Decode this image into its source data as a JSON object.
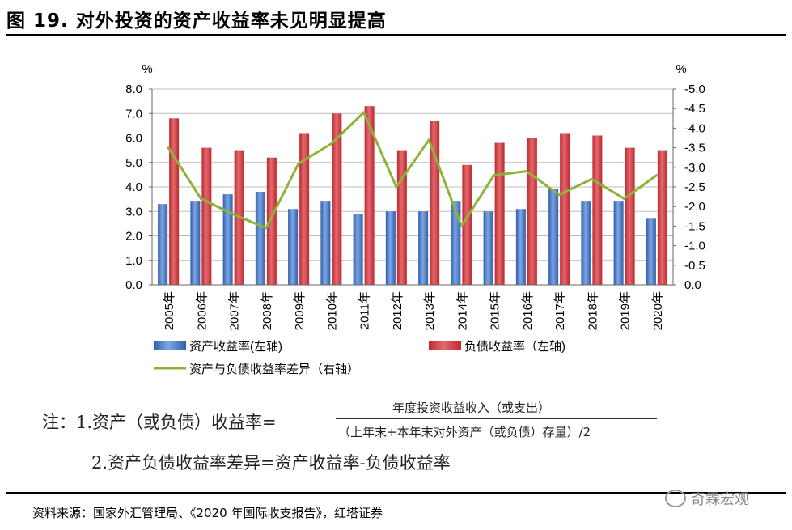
{
  "figure": {
    "title": "图 19. 对外投资的资产收益率未见明显提高",
    "note_line1_prefix": "注：1.资产（或负债）收益率=",
    "note_numerator": "年度投资收益收入（或支出）",
    "note_denominator": "（上年末+本年末对外资产（或负债）存量）/2",
    "note_line2": "2.资产负债收益率差异=资产收益率-负债收益率",
    "source": "资料来源：国家外汇管理局、《2020 年国际收支报告》，红塔证券",
    "watermark": "奇霖宏观"
  },
  "chart_data": {
    "type": "bar",
    "categories": [
      "2005年",
      "2006年",
      "2007年",
      "2008年",
      "2009年",
      "2010年",
      "2011年",
      "2012年",
      "2013年",
      "2014年",
      "2015年",
      "2016年",
      "2017年",
      "2018年",
      "2019年",
      "2020年"
    ],
    "series": [
      {
        "name": "资产收益率(左轴)",
        "kind": "bar",
        "axis": "left",
        "color": "#2E5FB0",
        "values": [
          3.3,
          3.4,
          3.7,
          3.8,
          3.1,
          3.4,
          2.9,
          3.0,
          3.0,
          3.4,
          3.0,
          3.1,
          3.9,
          3.4,
          3.4,
          2.7
        ]
      },
      {
        "name": "负债收益率（左轴)",
        "kind": "bar",
        "axis": "left",
        "color": "#C0282D",
        "values": [
          6.8,
          5.6,
          5.5,
          5.2,
          6.2,
          7.0,
          7.3,
          5.5,
          6.7,
          4.9,
          5.8,
          6.0,
          6.2,
          6.1,
          5.6,
          5.5
        ]
      },
      {
        "name": "资产与负债收益率差异（右轴）",
        "kind": "line",
        "axis": "right",
        "color": "#8DB33B",
        "values": [
          -3.5,
          -2.2,
          -1.8,
          -1.45,
          -3.1,
          -3.6,
          -4.4,
          -2.5,
          -3.7,
          -1.5,
          -2.8,
          -2.9,
          -2.3,
          -2.7,
          -2.2,
          -2.8
        ]
      }
    ],
    "y_left": {
      "unit": "%",
      "ylim": [
        0,
        8
      ],
      "ticks": [
        "0.0",
        "1.0",
        "2.0",
        "3.0",
        "4.0",
        "5.0",
        "6.0",
        "7.0",
        "8.0"
      ]
    },
    "y_right": {
      "unit": "%",
      "ylim": [
        0,
        -5
      ],
      "ticks": [
        "0.0",
        "-0.5",
        "-1.0",
        "-1.5",
        "-2.0",
        "-2.5",
        "-3.0",
        "-3.5",
        "-4.0",
        "-4.5",
        "-5.0"
      ]
    },
    "grid": true,
    "legend_position": "bottom"
  }
}
